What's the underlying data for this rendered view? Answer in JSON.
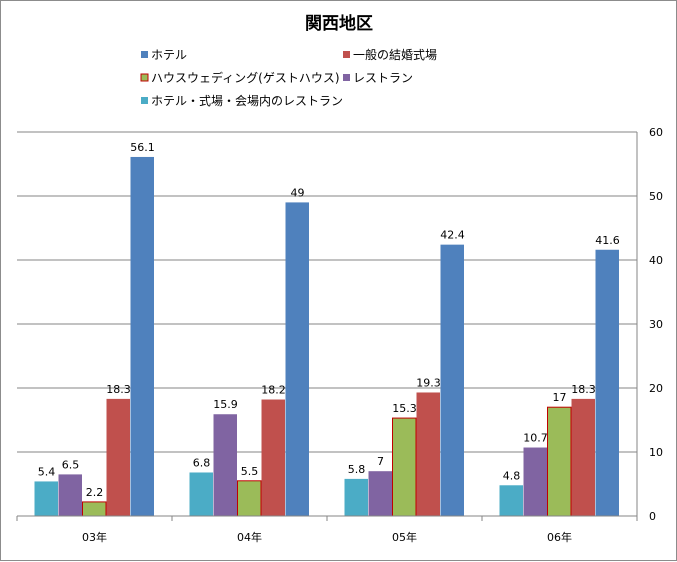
{
  "chart_data": {
    "type": "bar",
    "title": "関西地区",
    "categories": [
      "03年",
      "04年",
      "05年",
      "06年"
    ],
    "ylim": [
      0,
      60
    ],
    "yticks": [
      0,
      10,
      20,
      30,
      40,
      50,
      60
    ],
    "y_axis_side": "right",
    "grid": true,
    "series": [
      {
        "name": "ホテル・式場・会場内のレストラン",
        "color": "#4bacc6",
        "values": [
          5.4,
          6.8,
          5.8,
          4.8
        ],
        "labels": [
          "5.4",
          "6.8",
          "5.8",
          "4.8"
        ]
      },
      {
        "name": "レストラン",
        "color": "#8064a2",
        "values": [
          6.5,
          15.9,
          7,
          10.7
        ],
        "labels": [
          "6.5",
          "15.9",
          "7",
          "10.7"
        ]
      },
      {
        "name": "ハウスウェディング(ゲストハウス)",
        "color": "#9bbb59",
        "stroke": "#c00000",
        "values": [
          2.2,
          5.5,
          15.3,
          17
        ],
        "labels": [
          "2.2",
          "5.5",
          "15.3",
          "17"
        ]
      },
      {
        "name": "一般の結婚式場",
        "color": "#c0504d",
        "values": [
          18.3,
          18.2,
          19.3,
          18.3
        ],
        "labels": [
          "18.3",
          "18.2",
          "19.3",
          "18.3"
        ]
      },
      {
        "name": "ホテル",
        "color": "#4f81bd",
        "values": [
          56.1,
          49,
          42.4,
          41.6
        ],
        "labels": [
          "56.1",
          "49",
          "42.4",
          "41.6"
        ]
      }
    ],
    "legend": [
      {
        "name": "ホテル",
        "color": "#4f81bd"
      },
      {
        "name": "一般の結婚式場",
        "color": "#c0504d"
      },
      {
        "name": "ハウスウェディング(ゲストハウス)",
        "color": "#9bbb59",
        "stroke": "#c00000"
      },
      {
        "name": "レストラン",
        "color": "#8064a2"
      },
      {
        "name": "ホテル・式場・会場内のレストラン",
        "color": "#4bacc6"
      }
    ],
    "legend_position": "top"
  }
}
